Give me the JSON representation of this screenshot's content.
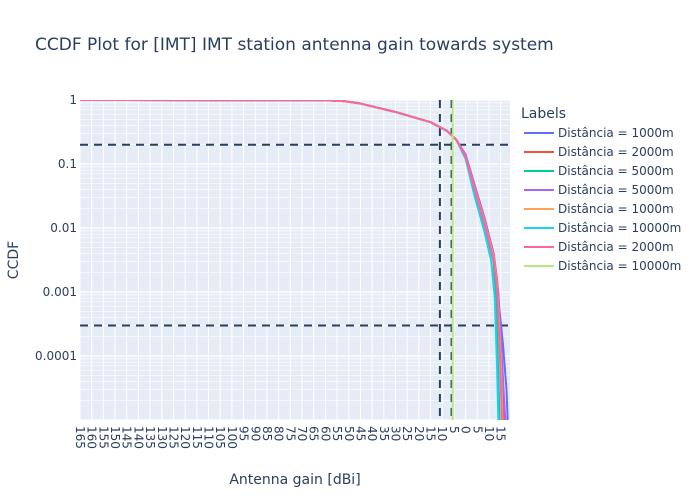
{
  "chart_data": {
    "type": "line",
    "title": "CCDF Plot for [IMT] IMT station antenna gain towards system",
    "xlabel": "Antenna gain [dBi]",
    "ylabel": "CCDF",
    "x_axis": {
      "range": [
        -165,
        19
      ],
      "tick_values": [
        -165,
        -160,
        -155,
        -150,
        -145,
        -140,
        -135,
        -130,
        -125,
        -120,
        -115,
        -110,
        -105,
        -100,
        -95,
        -90,
        -85,
        -80,
        -75,
        -70,
        -65,
        -60,
        -55,
        -50,
        -45,
        -40,
        -35,
        -30,
        -25,
        -20,
        -15,
        -10,
        -5,
        0,
        5,
        10,
        15
      ],
      "tick_labels": [
        "165",
        "160",
        "155",
        "150",
        "145",
        "140",
        "135",
        "130",
        "125",
        "120",
        "115",
        "110",
        "105",
        "100",
        "95",
        "90",
        "85",
        "80",
        "75",
        "70",
        "65",
        "60",
        "55",
        "50",
        "45",
        "40",
        "35",
        "30",
        "25",
        "20",
        "15",
        "10",
        "5",
        "0",
        "5",
        "10",
        "15"
      ]
    },
    "y_axis": {
      "scale": "log",
      "range": [
        1e-05,
        1
      ],
      "tick_values": [
        1,
        0.1,
        0.01,
        0.001,
        0.0001
      ],
      "tick_labels": [
        "1",
        "0.1",
        "0.01",
        "0.001",
        "0.0001"
      ]
    },
    "grid": true,
    "legend": {
      "title": "Labels",
      "placement": "right"
    },
    "reference_lines": {
      "horizontal": [
        0.2,
        0.0003
      ],
      "vertical": [
        -11,
        -6
      ],
      "color": "#2a3f5f"
    },
    "series": [
      {
        "name": "Distância = 1000m",
        "color": "#636efa",
        "x": [
          -165,
          -60,
          -52,
          -45,
          -30,
          -15,
          -8,
          -4,
          0,
          4,
          8,
          12,
          14,
          16,
          17.5,
          18
        ],
        "y": [
          1,
          0.99,
          0.96,
          0.88,
          0.65,
          0.45,
          0.33,
          0.24,
          0.14,
          0.045,
          0.014,
          0.0035,
          0.0008,
          0.00015,
          3e-05,
          1e-05
        ]
      },
      {
        "name": "Distância = 2000m",
        "color": "#ef553b",
        "x": [
          -165,
          -60,
          -52,
          -45,
          -30,
          -15,
          -8,
          -4,
          0,
          4,
          8,
          12,
          13.5,
          15,
          16,
          16.3
        ],
        "y": [
          1,
          0.99,
          0.96,
          0.88,
          0.65,
          0.45,
          0.33,
          0.24,
          0.13,
          0.04,
          0.014,
          0.004,
          0.0015,
          0.0002,
          3e-05,
          1e-05
        ]
      },
      {
        "name": "Distância = 5000m",
        "color": "#00cc96",
        "x": [
          -165,
          -60,
          -52,
          -45,
          -30,
          -15,
          -8,
          -4,
          0,
          4,
          8,
          12,
          13,
          14,
          14.5
        ],
        "y": [
          1,
          0.99,
          0.96,
          0.88,
          0.65,
          0.45,
          0.33,
          0.24,
          0.13,
          0.035,
          0.011,
          0.003,
          0.0008,
          5e-05,
          1e-05
        ]
      },
      {
        "name": "Distância = 5000m",
        "color": "#ab63fa",
        "x": [
          -165,
          -60,
          -52,
          -45,
          -30,
          -15,
          -8,
          -4,
          0,
          4,
          8,
          12,
          14,
          15.5,
          16.5,
          17
        ],
        "y": [
          1,
          0.99,
          0.96,
          0.88,
          0.65,
          0.45,
          0.33,
          0.24,
          0.14,
          0.045,
          0.015,
          0.004,
          0.001,
          0.0001,
          2e-05,
          1e-05
        ]
      },
      {
        "name": "Distância = 1000m",
        "color": "#ffa15a",
        "x": [
          -165,
          -60,
          -52,
          -45,
          -30,
          -15,
          -8,
          -4,
          0,
          4,
          8,
          12,
          13.5,
          15,
          15.8
        ],
        "y": [
          1,
          0.99,
          0.96,
          0.88,
          0.65,
          0.45,
          0.33,
          0.24,
          0.13,
          0.04,
          0.013,
          0.0035,
          0.0012,
          0.0001,
          1e-05
        ]
      },
      {
        "name": "Distância = 10000m",
        "color": "#19d3f3",
        "x": [
          -165,
          -60,
          -52,
          -45,
          -30,
          -15,
          -8,
          -4,
          0,
          4,
          8,
          11,
          12.5,
          13.5,
          14
        ],
        "y": [
          1,
          0.99,
          0.96,
          0.88,
          0.65,
          0.45,
          0.33,
          0.24,
          0.12,
          0.03,
          0.009,
          0.003,
          0.0008,
          6e-05,
          1e-05
        ]
      },
      {
        "name": "Distância = 2000m",
        "color": "#ff6692",
        "x": [
          -165,
          -60,
          -52,
          -45,
          -30,
          -15,
          -8,
          -4,
          0,
          4,
          8,
          12,
          13.5,
          14.8,
          15.5
        ],
        "y": [
          1,
          0.99,
          0.96,
          0.88,
          0.65,
          0.45,
          0.33,
          0.24,
          0.13,
          0.038,
          0.012,
          0.0032,
          0.001,
          8e-05,
          1e-05
        ]
      },
      {
        "name": "Distância = 10000m",
        "color": "#b6e880",
        "x": [
          -5.5,
          -5.5,
          -5.5
        ],
        "y": [
          1,
          0.2,
          1e-05
        ]
      }
    ]
  }
}
